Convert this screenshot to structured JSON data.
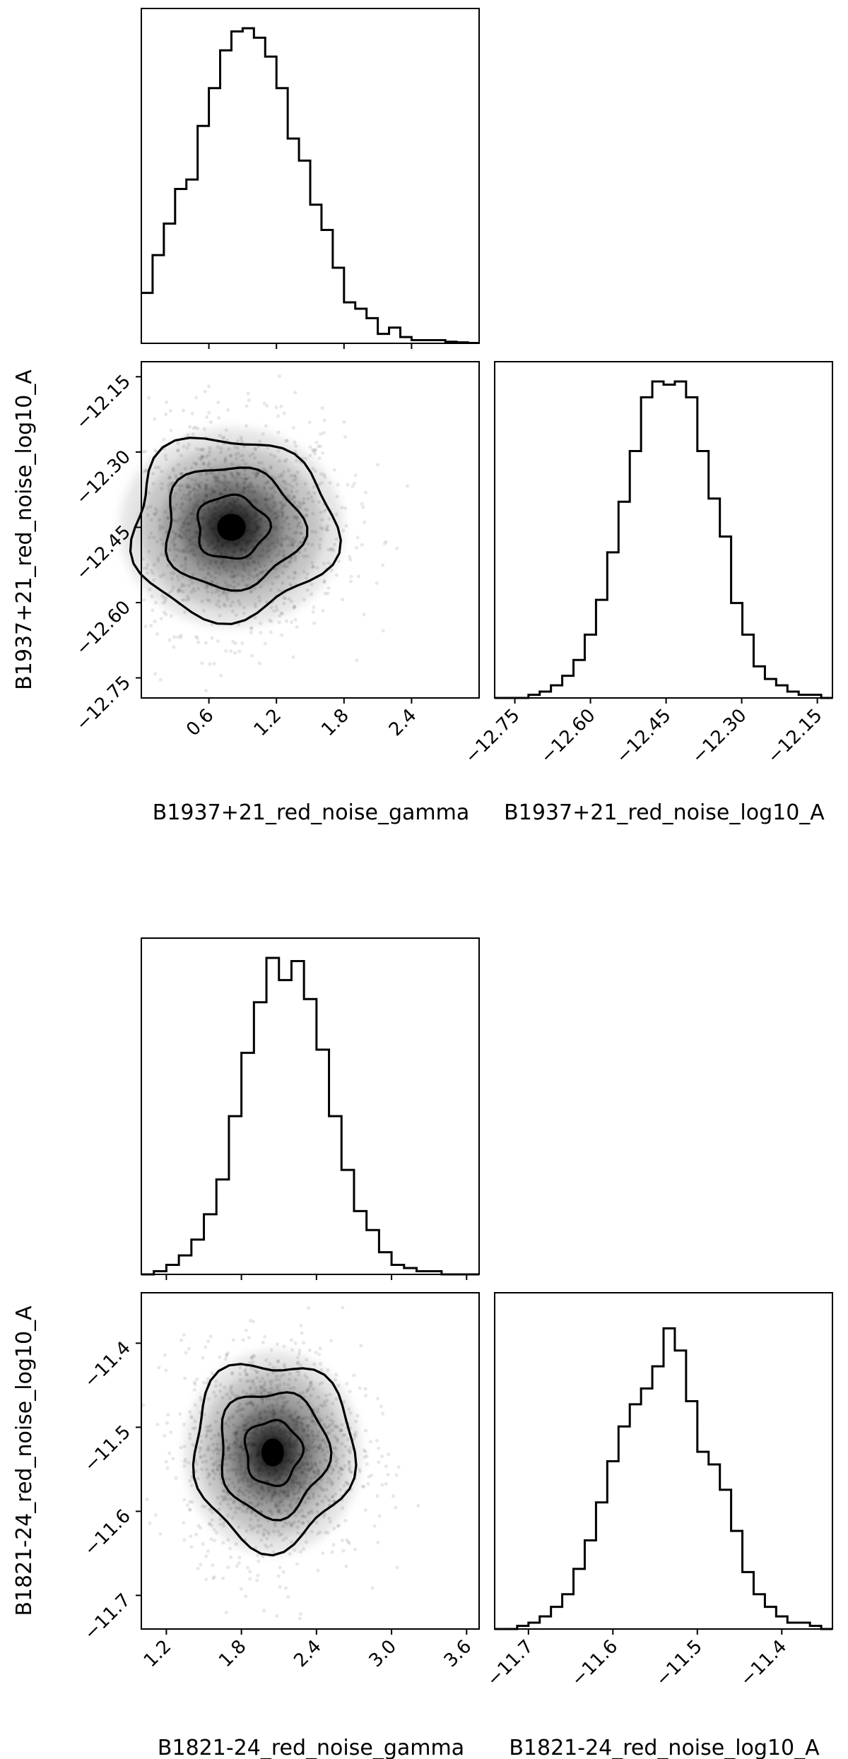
{
  "chart_data": [
    {
      "type": "corner",
      "pulsar": "B1937+21",
      "params": [
        "B1937+21_red_noise_gamma",
        "B1937+21_red_noise_log10_A"
      ],
      "xlabel_gamma": "B1937+21_red_noise_gamma",
      "xlabel_log10A": "B1937+21_red_noise_log10_A",
      "ylabel_log10A": "B1937+21_red_noise_log10_A",
      "gamma_range": [
        0.0,
        3.0
      ],
      "log10A_range": [
        -12.79,
        -12.12
      ],
      "gamma_ticks": [
        "0.6",
        "1.2",
        "1.8",
        "2.4"
      ],
      "gamma_tick_values": [
        0.6,
        1.2,
        1.8,
        2.4
      ],
      "log10A_ticks": [
        "−12.75",
        "−12.60",
        "−12.45",
        "−12.30",
        "−12.15"
      ],
      "log10A_tick_values": [
        -12.75,
        -12.6,
        -12.45,
        -12.3,
        -12.15
      ],
      "gamma_hist": [
        0.16,
        0.28,
        0.38,
        0.49,
        0.52,
        0.69,
        0.81,
        0.93,
        0.99,
        1.0,
        0.97,
        0.91,
        0.81,
        0.65,
        0.58,
        0.44,
        0.36,
        0.24,
        0.13,
        0.11,
        0.08,
        0.03,
        0.05,
        0.02,
        0.01,
        0.01,
        0.01,
        0.005,
        0.003,
        0.001
      ],
      "log10A_hist": [
        0.0,
        0.0,
        0.0,
        0.01,
        0.02,
        0.04,
        0.07,
        0.12,
        0.2,
        0.31,
        0.46,
        0.62,
        0.78,
        0.95,
        1.0,
        0.99,
        1.0,
        0.95,
        0.78,
        0.63,
        0.51,
        0.3,
        0.2,
        0.1,
        0.06,
        0.04,
        0.02,
        0.01,
        0.01,
        0.0
      ],
      "peak": {
        "gamma": 0.8,
        "log10A": -12.45
      },
      "spread": {
        "gamma": 0.45,
        "log10A": 0.09
      }
    },
    {
      "type": "corner",
      "pulsar": "B1821-24",
      "params": [
        "B1821-24_red_noise_gamma",
        "B1821-24_red_noise_log10_A"
      ],
      "xlabel_gamma": "B1821-24_red_noise_gamma",
      "xlabel_log10A": "B1821-24_red_noise_log10_A",
      "ylabel_log10A": "B1821-24_red_noise_log10_A",
      "gamma_range": [
        1.0,
        3.7
      ],
      "log10A_range": [
        -11.74,
        -11.34
      ],
      "gamma_ticks": [
        "1.2",
        "1.8",
        "2.4",
        "3.0",
        "3.6"
      ],
      "gamma_tick_values": [
        1.2,
        1.8,
        2.4,
        3.0,
        3.6
      ],
      "log10A_ticks": [
        "−11.7",
        "−11.6",
        "−11.5",
        "−11.4"
      ],
      "log10A_tick_values": [
        -11.7,
        -11.6,
        -11.5,
        -11.4
      ],
      "gamma_hist": [
        0.0,
        0.01,
        0.03,
        0.06,
        0.11,
        0.19,
        0.3,
        0.5,
        0.7,
        0.86,
        1.0,
        0.93,
        0.99,
        0.87,
        0.71,
        0.5,
        0.33,
        0.2,
        0.14,
        0.07,
        0.03,
        0.02,
        0.01,
        0.01,
        0.0,
        0.0,
        0.0
      ],
      "log10A_hist": [
        0.0,
        0.0,
        0.01,
        0.02,
        0.04,
        0.07,
        0.11,
        0.19,
        0.28,
        0.4,
        0.53,
        0.64,
        0.71,
        0.76,
        0.83,
        0.95,
        0.88,
        0.72,
        0.56,
        0.52,
        0.44,
        0.31,
        0.18,
        0.11,
        0.07,
        0.04,
        0.02,
        0.02,
        0.01,
        0.0
      ],
      "peak": {
        "gamma": 2.05,
        "log10A": -11.53
      },
      "spread": {
        "gamma": 0.32,
        "log10A": 0.055
      }
    }
  ]
}
